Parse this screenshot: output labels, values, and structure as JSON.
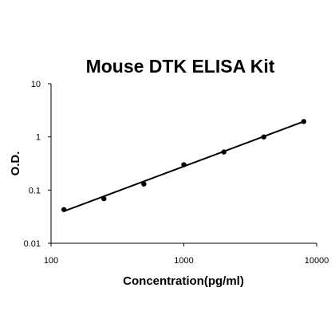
{
  "chart_data": {
    "type": "scatter",
    "title": "Mouse DTK ELISA Kit",
    "xlabel": "Concentration(pg/ml)",
    "ylabel": "O.D.",
    "xscale": "log",
    "yscale": "log",
    "xlim": [
      100,
      10000
    ],
    "ylim": [
      0.01,
      10
    ],
    "x_ticks": [
      100,
      1000,
      10000
    ],
    "x_tick_labels": [
      "100",
      "1000",
      "10000"
    ],
    "y_ticks": [
      0.01,
      0.1,
      1,
      10
    ],
    "y_tick_labels": [
      "0.01",
      "0.1",
      "1",
      "10"
    ],
    "grid": false,
    "series": [
      {
        "x": [
          125,
          250,
          500,
          1000,
          2000,
          4000,
          8000
        ],
        "y": [
          0.043,
          0.069,
          0.13,
          0.3,
          0.52,
          1.0,
          1.95
        ]
      }
    ],
    "fit_line": {
      "x": [
        125,
        8000
      ],
      "y": [
        0.04,
        1.95
      ]
    },
    "colors": {
      "points": "#000000",
      "line": "#000000",
      "axes": "#000000"
    }
  }
}
